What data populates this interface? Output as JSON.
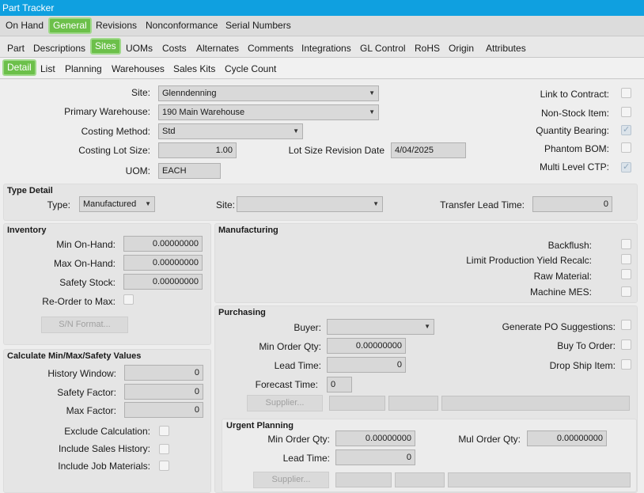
{
  "window": {
    "title": "Part Tracker"
  },
  "tabs_row1": [
    {
      "label": "On Hand"
    },
    {
      "label": "General"
    },
    {
      "label": "Revisions"
    },
    {
      "label": "Nonconformance"
    },
    {
      "label": "Serial Numbers"
    }
  ],
  "tabs_row2": [
    {
      "label": "Part"
    },
    {
      "label": "Descriptions"
    },
    {
      "label": "Sites"
    },
    {
      "label": "UOMs"
    },
    {
      "label": "Costs"
    },
    {
      "label": "Alternates"
    },
    {
      "label": "Comments"
    },
    {
      "label": "Integrations"
    },
    {
      "label": "GL Control"
    },
    {
      "label": "RoHS"
    },
    {
      "label": "Origin"
    },
    {
      "label": "Attributes"
    }
  ],
  "tabs_row3": [
    {
      "label": "Detail"
    },
    {
      "label": "List"
    },
    {
      "label": "Planning"
    },
    {
      "label": "Warehouses"
    },
    {
      "label": "Sales Kits"
    },
    {
      "label": "Cycle Count"
    }
  ],
  "active_tabs": {
    "row1": "General",
    "row2": "Sites",
    "row3": "Detail"
  },
  "header": {
    "site_label": "Site:",
    "site_value": "Glenndenning",
    "warehouse_label": "Primary Warehouse:",
    "warehouse_value": "190 Main Warehouse",
    "costing_label": "Costing Method:",
    "costing_value": "Std",
    "lot_size_label": "Costing Lot Size:",
    "lot_size_value": "1.00",
    "lot_rev_label": "Lot Size Revision Date",
    "lot_rev_value": "4/04/2025",
    "uom_label": "UOM:",
    "uom_value": "EACH"
  },
  "flags": {
    "link_contract": {
      "label": "Link to Contract:",
      "checked": false
    },
    "non_stock": {
      "label": "Non-Stock Item:",
      "checked": false
    },
    "qty_bearing": {
      "label": "Quantity Bearing:",
      "checked": true
    },
    "phantom_bom": {
      "label": "Phantom BOM:",
      "checked": false
    },
    "multi_level_ctp": {
      "label": "Multi Level CTP:",
      "checked": true
    }
  },
  "type_detail": {
    "title": "Type Detail",
    "type_label": "Type:",
    "type_value": "Manufactured",
    "site_label": "Site:",
    "site_value": "",
    "transfer_label": "Transfer Lead Time:",
    "transfer_value": "0"
  },
  "inventory": {
    "title": "Inventory",
    "min_label": "Min On-Hand:",
    "min_value": "0.00000000",
    "max_label": "Max On-Hand:",
    "max_value": "0.00000000",
    "safety_label": "Safety Stock:",
    "safety_value": "0.00000000",
    "reorder_label": "Re-Order to Max:",
    "sn_button": "S/N Format..."
  },
  "calc": {
    "title": "Calculate Min/Max/Safety Values",
    "history_label": "History Window:",
    "history_value": "0",
    "safety_factor_label": "Safety Factor:",
    "safety_factor_value": "0",
    "max_factor_label": "Max Factor:",
    "max_factor_value": "0",
    "exclude_label": "Exclude Calculation:",
    "sales_history_label": "Include Sales History:",
    "job_materials_label": "Include Job Materials:"
  },
  "manufacturing": {
    "title": "Manufacturing",
    "backflush_label": "Backflush:",
    "limit_label": "Limit Production Yield Recalc:",
    "raw_label": "Raw Material:",
    "mes_label": "Machine MES:"
  },
  "purchasing": {
    "title": "Purchasing",
    "buyer_label": "Buyer:",
    "buyer_value": "",
    "min_order_label": "Min Order Qty:",
    "min_order_value": "0.00000000",
    "lead_label": "Lead Time:",
    "lead_value": "0",
    "forecast_label": "Forecast Time:",
    "forecast_value": "0",
    "supplier_button": "Supplier...",
    "gen_po_label": "Generate PO Suggestions:",
    "buy_to_order_label": "Buy To Order:",
    "drop_ship_label": "Drop Ship Item:"
  },
  "urgent": {
    "title": "Urgent Planning",
    "min_order_label": "Min Order Qty:",
    "min_order_value": "0.00000000",
    "mul_order_label": "Mul Order Qty:",
    "mul_order_value": "0.00000000",
    "lead_label": "Lead Time:",
    "lead_value": "0",
    "supplier_button": "Supplier..."
  }
}
